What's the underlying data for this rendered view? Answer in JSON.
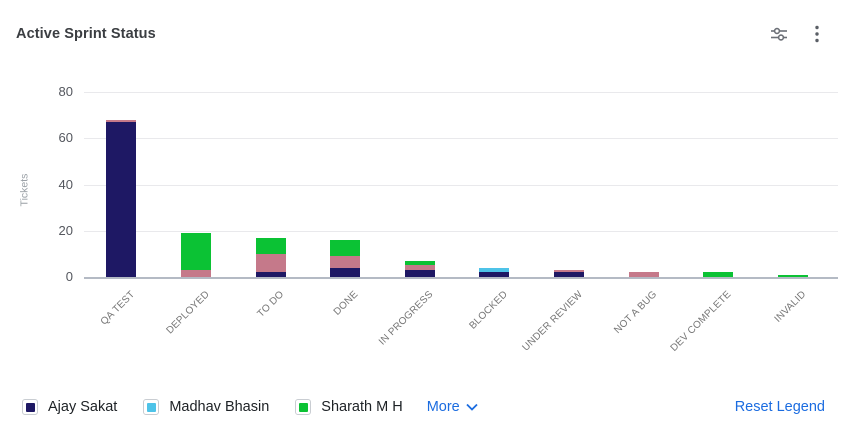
{
  "header": {
    "title": "Active Sprint Status",
    "icons": [
      "filter-sliders",
      "kebab-menu"
    ]
  },
  "chart_data": {
    "type": "bar",
    "stacked": true,
    "title": "Active Sprint Status",
    "xlabel": "",
    "ylabel": "Tickets",
    "ylim": [
      0,
      80
    ],
    "yticks": [
      0,
      20,
      40,
      60,
      80
    ],
    "grid": true,
    "categories": [
      "QA TEST",
      "DEPLOYED",
      "TO DO",
      "DONE",
      "IN PROGRESS",
      "BLOCKED",
      "UNDER REVIEW",
      "NOT A BUG",
      "DEV COMPLETE",
      "INVALID"
    ],
    "series": [
      {
        "name": "Ajay Sakat",
        "color": "#1e1864",
        "in_visible_legend": true,
        "values": [
          67,
          0,
          2,
          4,
          3,
          2,
          2,
          0,
          0,
          0
        ]
      },
      {
        "name": "Madhav Bhasin",
        "color": "#4ec3e8",
        "in_visible_legend": true,
        "values": [
          0,
          0,
          0,
          0,
          0,
          2,
          0,
          0,
          0,
          0
        ]
      },
      {
        "name": "",
        "color": "#c5798a",
        "in_visible_legend": false,
        "values": [
          1,
          3,
          8,
          5,
          2,
          0,
          1,
          2,
          0,
          0
        ]
      },
      {
        "name": "Sharath M H",
        "color": "#0bc234",
        "in_visible_legend": true,
        "values": [
          0,
          16,
          7,
          7,
          2,
          0,
          0,
          0,
          2,
          1
        ]
      }
    ],
    "totals": [
      68,
      19,
      17,
      16,
      7,
      4,
      3,
      2,
      2,
      1
    ],
    "legend_position": "bottom"
  },
  "legend": {
    "items": [
      {
        "label": "Ajay Sakat",
        "color": "#1e1864"
      },
      {
        "label": "Madhav Bhasin",
        "color": "#4ec3e8"
      },
      {
        "label": "Sharath M H",
        "color": "#0bc234"
      }
    ],
    "more_label": "More",
    "reset_label": "Reset Legend",
    "link_color": "#1b6ce0"
  }
}
